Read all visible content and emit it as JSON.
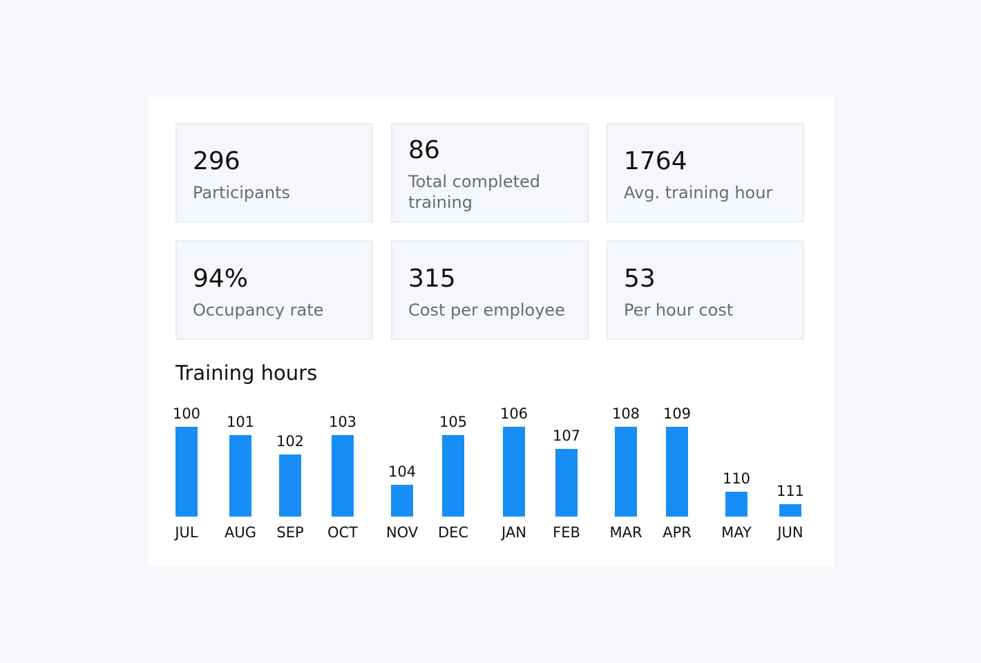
{
  "stats": [
    {
      "value": "296",
      "label": "Participants"
    },
    {
      "value": "86",
      "label": "Total completed training"
    },
    {
      "value": "1764",
      "label": "Avg. training hour"
    },
    {
      "value": "94%",
      "label": "Occupancy rate"
    },
    {
      "value": "315",
      "label": "Cost per employee"
    },
    {
      "value": "53",
      "label": "Per hour cost"
    }
  ],
  "chart_section_title": "Training hours",
  "chart_data": {
    "type": "bar",
    "title": "Training hours",
    "categories": [
      "JUL",
      "AUG",
      "SEP",
      "OCT",
      "NOV",
      "DEC",
      "JAN",
      "FEB",
      "MAR",
      "APR",
      "MAY",
      "JUN"
    ],
    "values": [
      100,
      101,
      102,
      103,
      104,
      105,
      106,
      107,
      108,
      109,
      110,
      111
    ],
    "relative_heights": [
      130,
      118,
      90,
      118,
      46,
      118,
      130,
      98,
      130,
      130,
      36,
      18
    ],
    "data_labels": [
      "100",
      "101",
      "102",
      "103",
      "104",
      "105",
      "106",
      "107",
      "108",
      "109",
      "110",
      "111"
    ],
    "xlabel": "",
    "ylabel": "",
    "grid": false,
    "legend": "none",
    "bar_color": "#168ef5"
  },
  "colors": {
    "page_background": "#f5f7fb",
    "panel_background": "#ffffff",
    "card_background": "#f5f7fb",
    "card_border": "#e6edf6",
    "value_text": "#111111",
    "label_text": "#666d75",
    "bar": "#168ef5"
  }
}
